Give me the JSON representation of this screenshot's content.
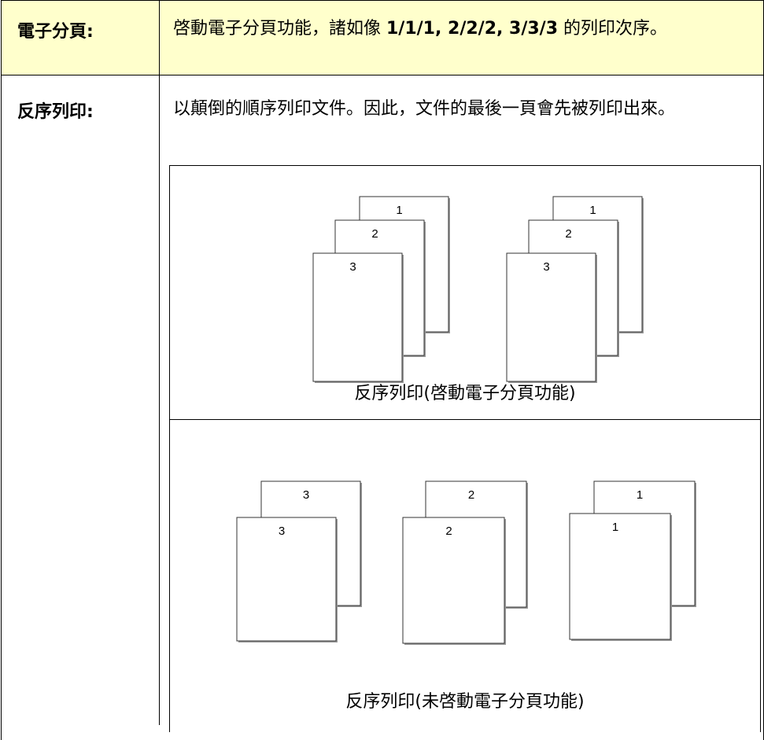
{
  "table": {
    "rows": [
      {
        "label": "電子分頁:",
        "text": [
          "啓動電子分頁功能，諸如像 ",
          "1/1/1, 2/2/2, 3/3/3",
          " 的列印次序。"
        ]
      },
      {
        "label": "反序列印:",
        "text": [
          "以顛倒的順序列印文件。因此，文件的最後一頁會先被列印出來。"
        ]
      }
    ]
  },
  "figures": [
    {
      "caption": "反序列印(啓動電子分頁功能)",
      "stacks": [
        [
          "1",
          "2",
          "3"
        ],
        [
          "1",
          "2",
          "3"
        ]
      ]
    },
    {
      "caption": "反序列印(未啓動電子分頁功能)",
      "stacks": [
        [
          "3",
          "3"
        ],
        [
          "2",
          "2"
        ],
        [
          "1",
          "1"
        ]
      ]
    }
  ]
}
